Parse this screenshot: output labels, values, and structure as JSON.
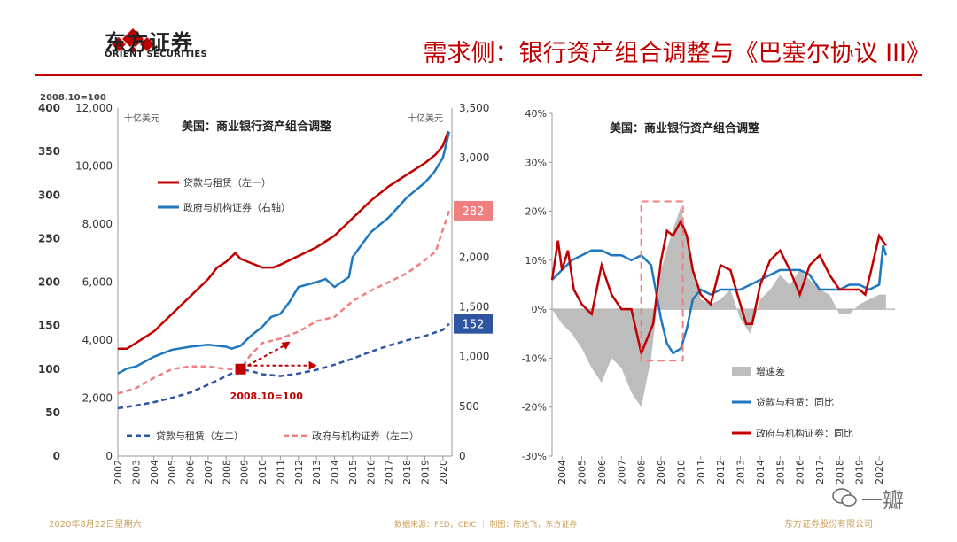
{
  "header": {
    "logo_cn": "东方证券",
    "logo_en": "ORIENT SECURITIES",
    "title": "需求侧：银行资产组合调整与《巴塞尔协议 III》"
  },
  "footer": {
    "date": "2020年8月22日星期六",
    "source": "数据来源：FED，CEIC ｜ 制图：陈达飞，东方证券",
    "company": "东方证券股份有限公司",
    "watermark": "一瓣"
  },
  "colors": {
    "red": "#c00000",
    "blue": "#1f77c0",
    "pink": "#f08080",
    "navy": "#2e55a0",
    "gray": "#bdbdbd"
  },
  "chart_data": [
    {
      "type": "line",
      "title": "美国：商业银行资产组合调整",
      "index_note": "2008.10=100",
      "left_unit": "十亿美元",
      "right_unit": "十亿美元",
      "axis_index": {
        "ticks": [
          "0",
          "50",
          "100",
          "150",
          "200",
          "250",
          "300",
          "350",
          "400"
        ],
        "ylim": [
          0,
          400
        ]
      },
      "axis_left": {
        "ticks": [
          "0",
          "2,000",
          "4,000",
          "6,000",
          "8,000",
          "10,000",
          "12,000"
        ],
        "ylim": [
          0,
          12000
        ]
      },
      "axis_right": {
        "ticks": [
          "0",
          "500",
          "1,000",
          "1,500",
          "2,000",
          "2,500",
          "3,000",
          "3,500"
        ],
        "ylim": [
          0,
          3500
        ]
      },
      "x_ticks": [
        "2002",
        "2003",
        "2004",
        "2005",
        "2006",
        "2007",
        "2008",
        "2009",
        "2010",
        "2011",
        "2012",
        "2013",
        "2014",
        "2015",
        "2016",
        "2017",
        "2018",
        "2019",
        "2020"
      ],
      "annotation": "2008.10=100",
      "end_labels": [
        "282",
        "152"
      ],
      "series": [
        {
          "name": "贷款与租赁（左一）",
          "color": "#c00000",
          "style": "solid",
          "axis": "left",
          "x": [
            2002.0,
            2002.5,
            2003,
            2004,
            2005,
            2006,
            2007,
            2007.5,
            2008,
            2008.5,
            2008.8,
            2009.2,
            2009.6,
            2010,
            2010.6,
            2011,
            2012,
            2013,
            2014,
            2015,
            2016,
            2017,
            2018,
            2019,
            2019.6,
            2020.0,
            2020.3
          ],
          "y": [
            3700,
            3700,
            3900,
            4300,
            4900,
            5500,
            6100,
            6500,
            6700,
            7000,
            6800,
            6700,
            6600,
            6500,
            6500,
            6600,
            6900,
            7200,
            7600,
            8200,
            8800,
            9300,
            9700,
            10100,
            10400,
            10700,
            11200
          ]
        },
        {
          "name": "政府与机构证券（右轴）",
          "color": "#1f77c0",
          "style": "solid",
          "axis": "right",
          "x": [
            2002.0,
            2002.5,
            2003,
            2004,
            2005,
            2006,
            2007,
            2007.5,
            2008,
            2008.3,
            2008.8,
            2009.3,
            2010,
            2010.5,
            2011,
            2011.5,
            2012,
            2013,
            2013.5,
            2014,
            2014.8,
            2015,
            2016,
            2017,
            2018,
            2019,
            2019.5,
            2020.0,
            2020.35
          ],
          "y": [
            830,
            880,
            900,
            1000,
            1070,
            1100,
            1120,
            1110,
            1100,
            1080,
            1110,
            1200,
            1300,
            1400,
            1430,
            1550,
            1700,
            1750,
            1780,
            1700,
            1800,
            2000,
            2250,
            2400,
            2600,
            2750,
            2850,
            3000,
            3260
          ]
        },
        {
          "name": "贷款与租赁（左二）",
          "color": "#2e55a0",
          "style": "dashed",
          "axis": "index",
          "x": [
            2002,
            2003,
            2004,
            2005,
            2006,
            2007,
            2008,
            2008.8,
            2009.5,
            2010,
            2011,
            2012,
            2013,
            2014,
            2015,
            2016,
            2017,
            2018,
            2019,
            2020,
            2020.35
          ],
          "y": [
            55,
            58,
            62,
            67,
            73,
            82,
            92,
            100,
            97,
            94,
            92,
            95,
            99,
            105,
            112,
            120,
            127,
            133,
            138,
            145,
            152
          ]
        },
        {
          "name": "政府与机构证券（左二）",
          "color": "#f08080",
          "style": "dashed",
          "axis": "index",
          "x": [
            2002,
            2003,
            2004,
            2005,
            2006,
            2007,
            2008,
            2008.8,
            2009.3,
            2010,
            2011,
            2012,
            2013,
            2014,
            2015,
            2016,
            2017,
            2018,
            2019,
            2019.6,
            2020,
            2020.35
          ],
          "y": [
            72,
            78,
            90,
            100,
            103,
            103,
            100,
            100,
            115,
            130,
            135,
            143,
            155,
            160,
            178,
            190,
            200,
            210,
            225,
            235,
            260,
            282
          ]
        }
      ]
    },
    {
      "type": "line",
      "title": "美国：商业银行资产组合调整",
      "y_ticks": [
        "-30%",
        "-20%",
        "-10%",
        "0%",
        "10%",
        "20%",
        "30%",
        "40%"
      ],
      "ylim": [
        -30,
        40
      ],
      "x_ticks": [
        "2004",
        "2005",
        "2006",
        "2007",
        "2008",
        "2009",
        "2010",
        "2011",
        "2012",
        "2013",
        "2014",
        "2015",
        "2016",
        "2017",
        "2018",
        "2019",
        "2020"
      ],
      "series": [
        {
          "name": "增速差",
          "color": "#bdbdbd",
          "style": "area",
          "x": [
            2003.5,
            2004,
            2004.5,
            2005,
            2005.5,
            2006,
            2006.5,
            2007,
            2007.5,
            2008,
            2008.5,
            2009,
            2009.5,
            2010,
            2010.5,
            2011,
            2011.5,
            2012,
            2012.5,
            2013,
            2013.5,
            2014,
            2014.5,
            2015,
            2015.5,
            2016,
            2016.5,
            2017,
            2017.5,
            2018,
            2018.5,
            2019,
            2019.5,
            2020,
            2020.35
          ],
          "y": [
            0,
            -3,
            -5,
            -8,
            -12,
            -15,
            -10,
            -12,
            -17,
            -20,
            -10,
            8,
            15,
            21,
            10,
            2,
            1,
            2,
            4,
            -2,
            -5,
            2,
            4,
            7,
            5,
            8,
            6,
            4,
            3,
            -1,
            -1,
            1,
            2,
            3,
            3
          ]
        },
        {
          "name": "贷款与租赁：同比",
          "color": "#1f77c0",
          "style": "solid",
          "x": [
            2003.5,
            2004,
            2004.5,
            2005,
            2005.5,
            2006,
            2006.5,
            2007,
            2007.5,
            2008,
            2008.5,
            2009,
            2009.3,
            2009.6,
            2010,
            2010.3,
            2010.6,
            2011,
            2011.5,
            2012,
            2012.5,
            2013,
            2013.5,
            2014,
            2014.5,
            2015,
            2015.5,
            2016,
            2016.5,
            2017,
            2017.5,
            2018,
            2018.5,
            2019,
            2019.5,
            2020,
            2020.2,
            2020.35
          ],
          "y": [
            6,
            8,
            10,
            11,
            12,
            12,
            11,
            11,
            10,
            11,
            9,
            -2,
            -7,
            -9,
            -8,
            -4,
            2,
            4,
            3,
            4,
            4,
            4,
            5,
            6,
            7,
            8,
            8,
            8,
            7,
            4,
            4,
            4,
            5,
            5,
            4,
            5,
            13,
            11
          ]
        },
        {
          "name": "政府与机构证券：同比",
          "color": "#c00000",
          "style": "solid",
          "x": [
            2003.5,
            2003.8,
            2004,
            2004.3,
            2004.6,
            2005,
            2005.5,
            2006,
            2006.5,
            2007,
            2007.5,
            2008,
            2008.3,
            2008.6,
            2009,
            2009.3,
            2009.6,
            2010,
            2010.3,
            2010.6,
            2011,
            2011.5,
            2012,
            2012.5,
            2013,
            2013.3,
            2013.6,
            2014,
            2014.5,
            2015,
            2015.5,
            2016,
            2016.5,
            2017,
            2017.5,
            2018,
            2018.5,
            2019,
            2019.3,
            2019.6,
            2020,
            2020.35
          ],
          "y": [
            6,
            14,
            8,
            12,
            4,
            1,
            -1,
            9,
            3,
            0,
            0,
            -9,
            -6,
            -3,
            10,
            16,
            15,
            18,
            15,
            8,
            3,
            1,
            9,
            8,
            1,
            -3,
            -3,
            5,
            10,
            12,
            8,
            3,
            9,
            11,
            7,
            4,
            4,
            4,
            3,
            8,
            15,
            13
          ]
        }
      ]
    }
  ]
}
